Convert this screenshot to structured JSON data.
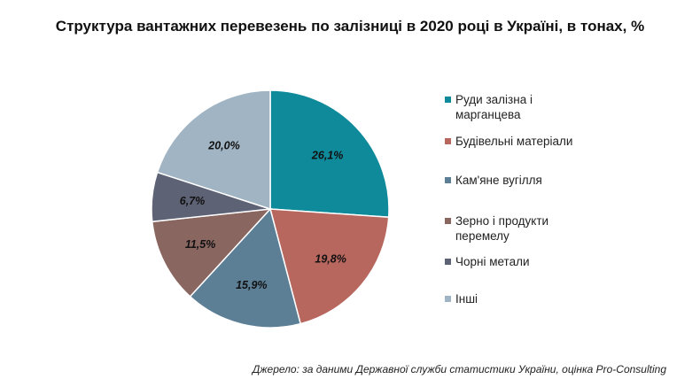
{
  "title": "Структура вантажних перевезень по залізниці в 2020 році в Україні, в тонах, %",
  "source": "Джерело: за даними Державної служби статистики України, оцінка Pro-Consulting",
  "chart_data": {
    "type": "pie",
    "title": "Структура вантажних перевезень по залізниці в 2020 році в Україні, в тонах, %",
    "unit": "%",
    "slices": [
      {
        "name": "Руди залізна і марганцева",
        "value": 26.1,
        "label": "26,1%",
        "color": "#0f8a9a"
      },
      {
        "name": "Будівельні матеріали",
        "value": 19.8,
        "label": "19,8%",
        "color": "#b8675f"
      },
      {
        "name": "Кам'яне вугілля",
        "value": 15.9,
        "label": "15,9%",
        "color": "#5c7f96"
      },
      {
        "name": "Зерно і продукти перемелу",
        "value": 11.5,
        "label": "11,5%",
        "color": "#8a6661"
      },
      {
        "name": "Чорні метали",
        "value": 6.7,
        "label": "6,7%",
        "color": "#5e6275"
      },
      {
        "name": "Інші",
        "value": 20.0,
        "label": "20,0%",
        "color": "#a0b4c3"
      }
    ],
    "legend_position": "right"
  }
}
